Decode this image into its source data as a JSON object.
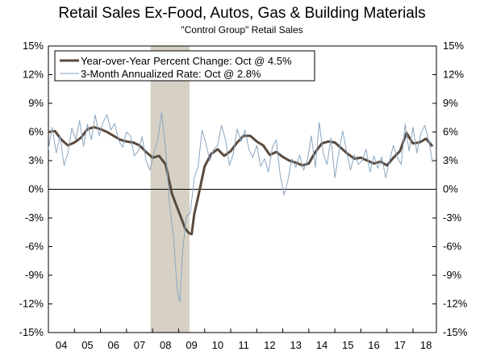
{
  "chart_data": {
    "type": "line",
    "title": "Retail Sales Ex-Food, Autos, Gas & Building Materials",
    "subtitle": "\"Control Group\" Retail Sales",
    "ylim": [
      -15,
      15
    ],
    "yticks": [
      "15%",
      "12%",
      "9%",
      "6%",
      "3%",
      "0%",
      "-3%",
      "-6%",
      "-9%",
      "-12%",
      "-15%"
    ],
    "ytick_values": [
      15,
      12,
      9,
      6,
      3,
      0,
      -3,
      -6,
      -9,
      -12,
      -15
    ],
    "xlim": [
      2004,
      2018.9
    ],
    "xticks": [
      "04",
      "05",
      "06",
      "07",
      "08",
      "09",
      "10",
      "11",
      "12",
      "13",
      "14",
      "15",
      "16",
      "17",
      "18"
    ],
    "xtick_values": [
      2004,
      2005,
      2006,
      2007,
      2008,
      2009,
      2010,
      2011,
      2012,
      2013,
      2014,
      2015,
      2016,
      2017,
      2018
    ],
    "recession": {
      "start": 2007.92,
      "end": 2009.42
    },
    "legend_position": "top-left",
    "series": [
      {
        "name": "Year-over-Year Percent Change: Oct @ 4.5%",
        "color": "#5a4a3e",
        "style": "thick",
        "x": [
          2004.0,
          2004.25,
          2004.5,
          2004.75,
          2005.0,
          2005.25,
          2005.5,
          2005.75,
          2006.0,
          2006.25,
          2006.5,
          2006.75,
          2007.0,
          2007.25,
          2007.5,
          2007.75,
          2008.0,
          2008.25,
          2008.5,
          2008.75,
          2009.0,
          2009.25,
          2009.4,
          2009.5,
          2009.6,
          2009.75,
          2010.0,
          2010.25,
          2010.5,
          2010.75,
          2011.0,
          2011.25,
          2011.5,
          2011.75,
          2012.0,
          2012.25,
          2012.5,
          2012.75,
          2013.0,
          2013.25,
          2013.5,
          2013.75,
          2014.0,
          2014.25,
          2014.5,
          2014.75,
          2015.0,
          2015.25,
          2015.5,
          2015.75,
          2016.0,
          2016.25,
          2016.5,
          2016.75,
          2017.0,
          2017.25,
          2017.5,
          2017.75,
          2018.0,
          2018.25,
          2018.5,
          2018.75
        ],
        "values": [
          6.0,
          6.1,
          5.2,
          4.6,
          4.9,
          5.4,
          6.3,
          6.5,
          6.3,
          6.0,
          5.6,
          5.2,
          5.0,
          4.9,
          4.6,
          3.9,
          3.3,
          3.5,
          2.6,
          -0.5,
          -2.3,
          -4.1,
          -4.6,
          -4.7,
          -2.6,
          -0.8,
          2.4,
          3.7,
          4.2,
          3.5,
          4.0,
          4.9,
          5.6,
          5.6,
          5.0,
          4.6,
          3.6,
          3.9,
          3.4,
          3.0,
          2.8,
          2.5,
          2.7,
          3.9,
          4.8,
          5.0,
          4.9,
          4.3,
          3.7,
          3.2,
          3.3,
          3.0,
          2.7,
          2.9,
          2.5,
          3.3,
          4.0,
          5.9,
          4.8,
          4.9,
          5.3,
          4.5
        ]
      },
      {
        "name": "3-Month Annualized Rate: Oct @ 2.8%",
        "color": "#8aa6c0",
        "style": "thin",
        "x": [
          2004.0,
          2004.15,
          2004.3,
          2004.45,
          2004.6,
          2004.75,
          2004.9,
          2005.05,
          2005.2,
          2005.35,
          2005.5,
          2005.65,
          2005.8,
          2005.95,
          2006.1,
          2006.25,
          2006.4,
          2006.55,
          2006.7,
          2006.85,
          2007.0,
          2007.15,
          2007.3,
          2007.45,
          2007.6,
          2007.75,
          2007.9,
          2008.05,
          2008.2,
          2008.35,
          2008.5,
          2008.65,
          2008.8,
          2008.95,
          2009.05,
          2009.15,
          2009.3,
          2009.45,
          2009.6,
          2009.75,
          2009.9,
          2010.05,
          2010.2,
          2010.35,
          2010.5,
          2010.65,
          2010.8,
          2010.95,
          2011.1,
          2011.25,
          2011.4,
          2011.55,
          2011.7,
          2011.85,
          2012.0,
          2012.15,
          2012.3,
          2012.45,
          2012.6,
          2012.75,
          2012.9,
          2013.05,
          2013.2,
          2013.35,
          2013.5,
          2013.65,
          2013.8,
          2013.95,
          2014.1,
          2014.25,
          2014.4,
          2014.55,
          2014.7,
          2014.85,
          2015.0,
          2015.15,
          2015.3,
          2015.45,
          2015.6,
          2015.75,
          2015.9,
          2016.05,
          2016.2,
          2016.35,
          2016.5,
          2016.65,
          2016.8,
          2016.95,
          2017.1,
          2017.25,
          2017.4,
          2017.55,
          2017.7,
          2017.85,
          2018.0,
          2018.15,
          2018.3,
          2018.45,
          2018.6,
          2018.75
        ],
        "values": [
          4.2,
          6.5,
          3.8,
          5.6,
          2.5,
          3.8,
          6.4,
          5.2,
          7.2,
          4.5,
          6.8,
          5.2,
          7.8,
          5.6,
          7.0,
          7.8,
          6.2,
          6.9,
          5.1,
          4.4,
          6.0,
          5.6,
          3.5,
          4.0,
          5.5,
          3.0,
          2.0,
          3.8,
          5.2,
          8.0,
          4.2,
          -1.5,
          -5.0,
          -10.6,
          -11.8,
          -6.5,
          -2.8,
          -2.5,
          1.2,
          2.4,
          6.2,
          4.8,
          3.0,
          4.2,
          4.6,
          6.7,
          5.2,
          2.5,
          3.7,
          6.3,
          5.0,
          6.2,
          4.2,
          3.3,
          4.6,
          2.4,
          3.2,
          1.8,
          4.4,
          5.2,
          1.5,
          -0.6,
          1.0,
          3.2,
          2.3,
          3.6,
          2.0,
          3.1,
          5.6,
          2.3,
          7.0,
          3.8,
          2.6,
          5.4,
          1.2,
          3.8,
          6.1,
          4.0,
          2.0,
          3.6,
          2.6,
          3.0,
          4.2,
          1.8,
          3.5,
          2.2,
          3.4,
          1.2,
          3.0,
          4.6,
          3.3,
          2.6,
          6.8,
          4.0,
          6.5,
          3.8,
          5.8,
          6.7,
          5.2,
          2.8
        ]
      }
    ]
  }
}
